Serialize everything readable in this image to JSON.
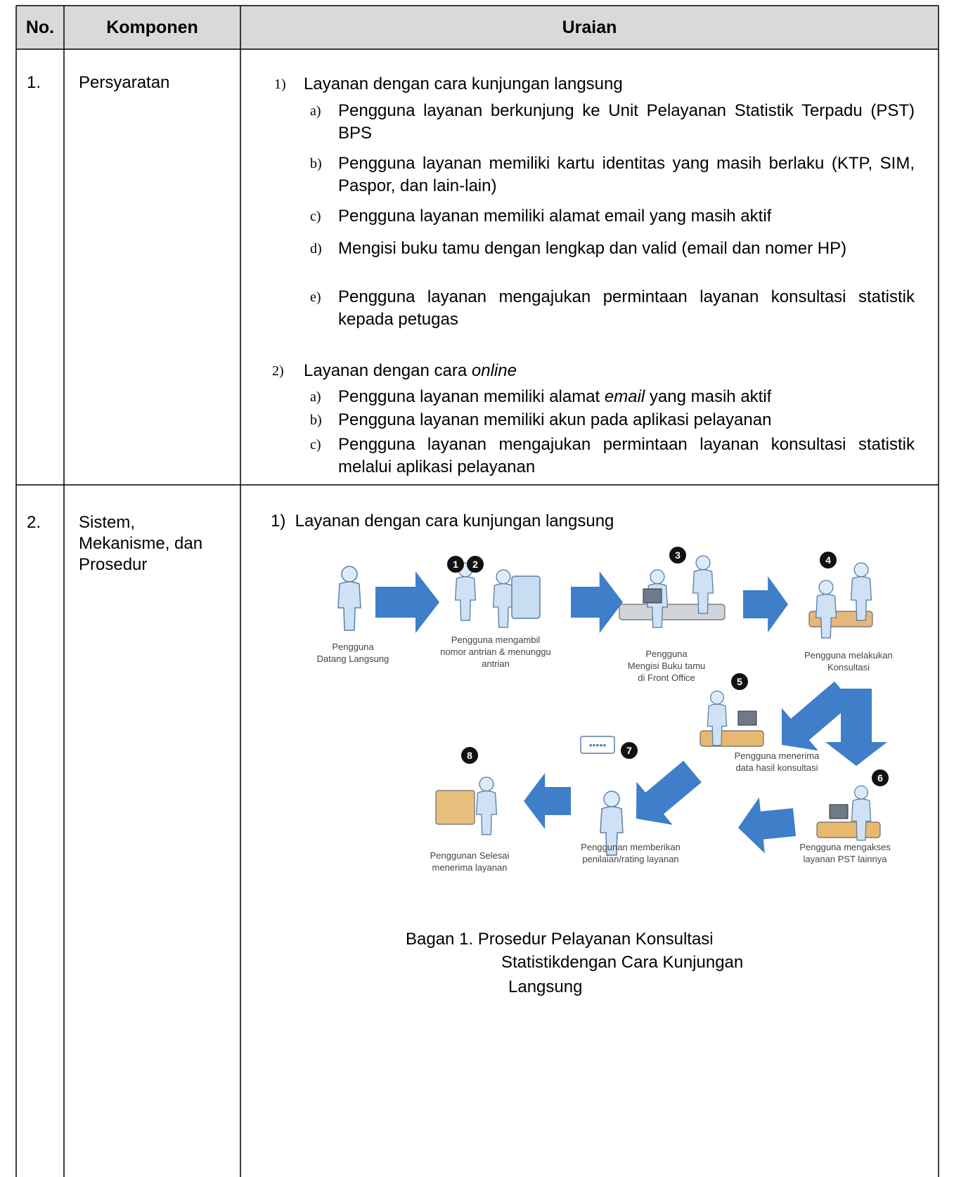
{
  "table": {
    "headers": [
      "No.",
      "Komponen",
      "Uraian"
    ],
    "rows": [
      {
        "no": "1.",
        "komponen": "Persyaratan",
        "sections": [
          {
            "marker": "1)",
            "title": [
              {
                "text": "Layanan dengan cara kunjungan langsung"
              }
            ],
            "items": [
              {
                "marker": "a)",
                "parts": [
                  {
                    "text": "Pengguna layanan berkunjung ke Unit Pelayanan Statistik Terpadu (PST) BPS"
                  }
                ]
              },
              {
                "marker": "b)",
                "parts": [
                  {
                    "text": "Pengguna layanan memiliki kartu identitas yang masih berlaku (KTP, SIM, Paspor, dan lain-lain)"
                  }
                ]
              },
              {
                "marker": "c)",
                "parts": [
                  {
                    "text": "Pengguna layanan memiliki alamat email yang masih aktif"
                  }
                ]
              },
              {
                "marker": "d)",
                "parts": [
                  {
                    "text": "Mengisi buku tamu dengan lengkap dan valid (email dan nomer HP)"
                  }
                ]
              },
              {
                "marker": "e)",
                "parts": [
                  {
                    "text": "Pengguna layanan mengajukan permintaan layanan konsultasi statistik kepada petugas"
                  }
                ]
              }
            ]
          },
          {
            "marker": "2)",
            "title": [
              {
                "text": "Layanan dengan cara "
              },
              {
                "text": "online",
                "em": true
              }
            ],
            "items": [
              {
                "marker": "a)",
                "parts": [
                  {
                    "text": "Pengguna layanan memiliki alamat "
                  },
                  {
                    "text": "email",
                    "em": true
                  },
                  {
                    "text": " yang masih aktif"
                  }
                ]
              },
              {
                "marker": "b)",
                "parts": [
                  {
                    "text": "Pengguna layanan memiliki akun pada aplikasi pelayanan"
                  }
                ]
              },
              {
                "marker": "c)",
                "parts": [
                  {
                    "text": "Pengguna layanan mengajukan permintaan layanan konsultasi statistik melalui aplikasi pelayanan"
                  }
                ]
              }
            ]
          }
        ]
      },
      {
        "no": "2.",
        "komponen": "Sistem, Mekanisme, dan Prosedur",
        "heading": "1)  Layanan dengan cara kunjungan langsung",
        "diagram": {
          "steps": [
            {
              "caption": [
                "Pengguna",
                "Datang Langsung"
              ]
            },
            {
              "numbers": [
                "1",
                "2"
              ],
              "caption": [
                "Pengguna mengambil",
                "nomor antrian & menunggu",
                "antrian"
              ]
            },
            {
              "numbers": [
                "3"
              ],
              "caption": [
                "Pengguna",
                "Mengisi Buku tamu",
                "di Front Office"
              ]
            },
            {
              "numbers": [
                "4"
              ],
              "caption": [
                "Pengguna melakukan",
                "Konsultasi"
              ]
            },
            {
              "numbers": [
                "5"
              ],
              "caption": [
                "Pengguna menerima",
                "data hasil konsultasi"
              ]
            },
            {
              "numbers": [
                "6"
              ],
              "caption": [
                "Pengguna mengakses",
                "layanan PST lainnya"
              ]
            },
            {
              "numbers": [
                "7"
              ],
              "caption": [
                "Penggunan memberikan",
                "penilaian/rating layanan"
              ]
            },
            {
              "numbers": [
                "8"
              ],
              "caption": [
                "Penggunan Selesai",
                "menerima layanan"
              ]
            }
          ],
          "caption": [
            "Bagan 1. Prosedur Pelayanan Konsultasi",
            "Statistikdengan Cara Kunjungan",
            "Langsung"
          ]
        }
      }
    ]
  }
}
